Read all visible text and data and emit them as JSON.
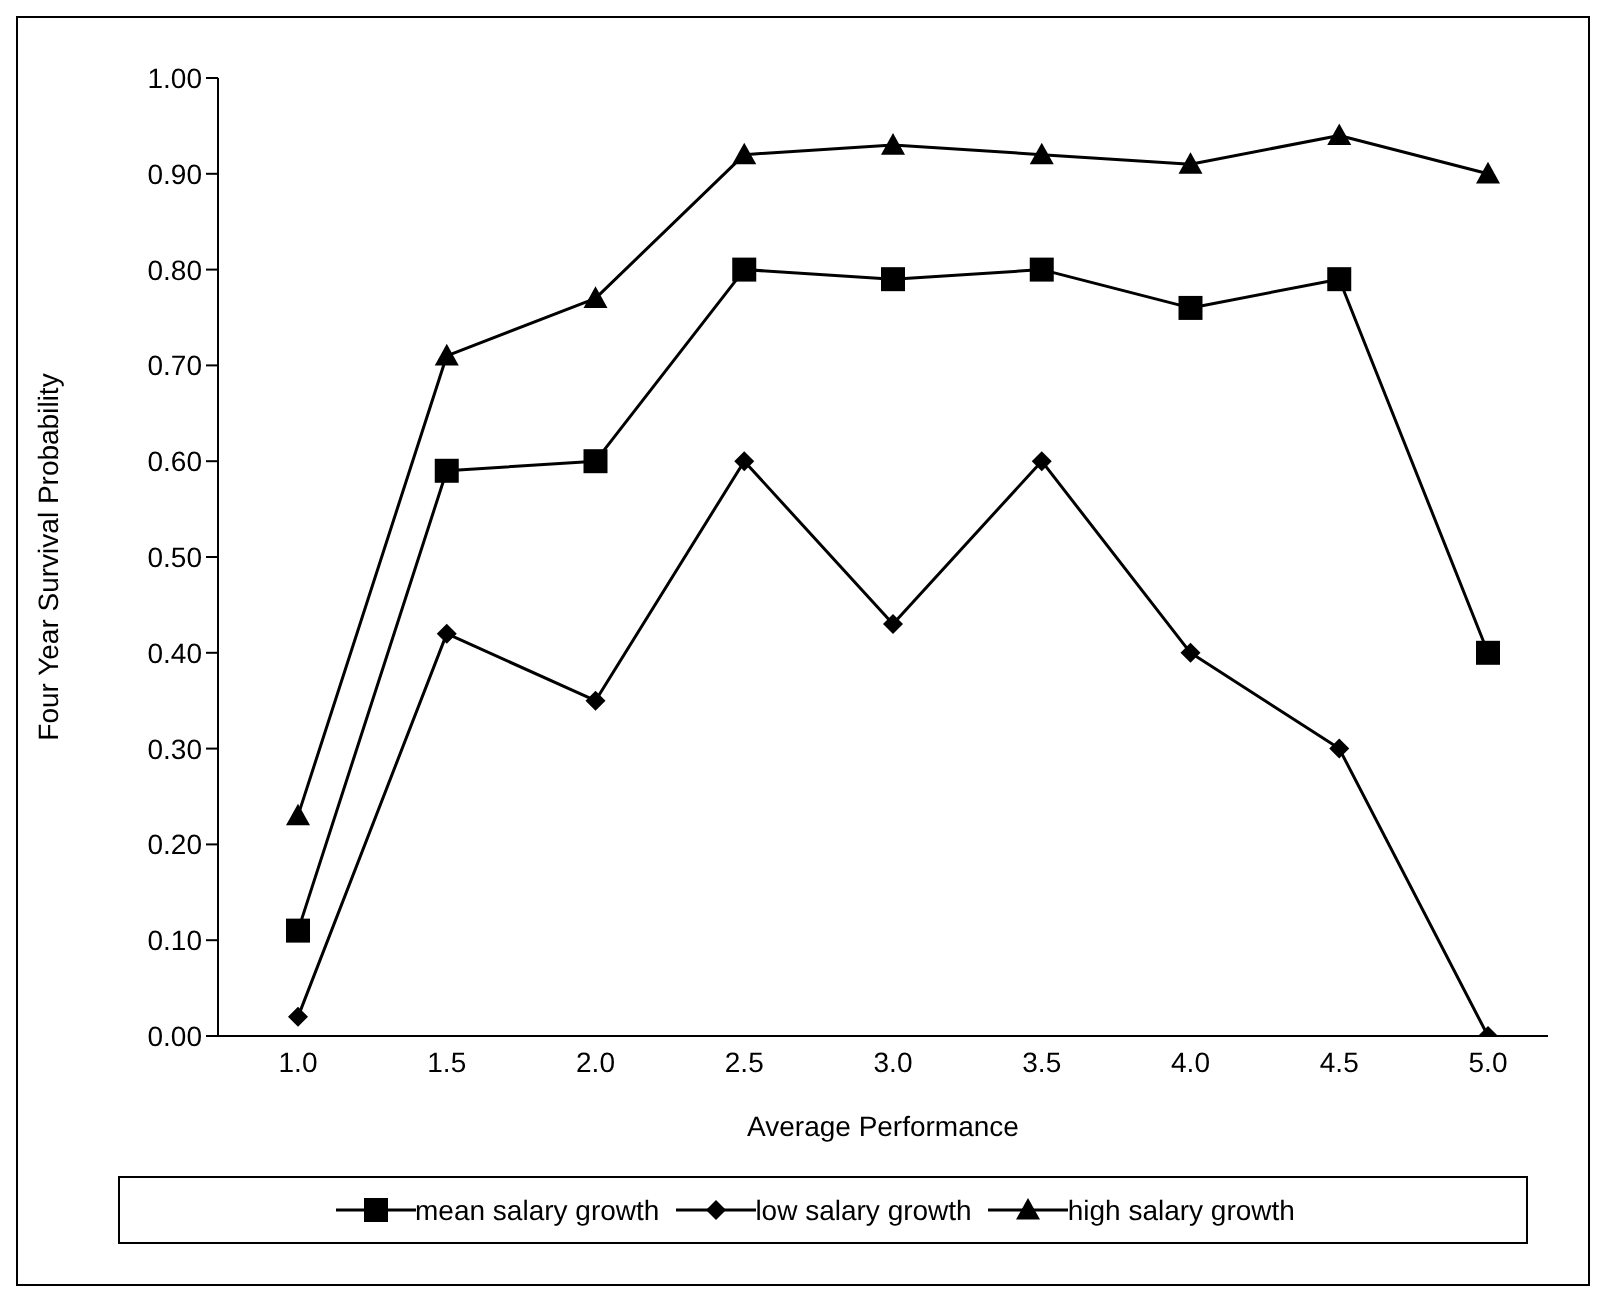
{
  "chart_data": {
    "type": "line",
    "xlabel": "Average Performance",
    "ylabel": "Four Year Survival Probability",
    "categories": [
      "1.0",
      "1.5",
      "2.0",
      "2.5",
      "3.0",
      "3.5",
      "4.0",
      "4.5",
      "5.0"
    ],
    "series": [
      {
        "name": "mean salary growth",
        "color": "#000000",
        "marker": "square",
        "values": [
          0.11,
          0.59,
          0.6,
          0.8,
          0.79,
          0.8,
          0.76,
          0.79,
          0.4
        ]
      },
      {
        "name": "low salary growth",
        "color": "#000000",
        "marker": "diamond",
        "values": [
          0.02,
          0.42,
          0.35,
          0.6,
          0.43,
          0.6,
          0.4,
          0.3,
          0.0
        ]
      },
      {
        "name": "high salary growth",
        "color": "#000000",
        "marker": "triangle",
        "values": [
          0.23,
          0.71,
          0.77,
          0.92,
          0.93,
          0.92,
          0.91,
          0.94,
          0.9
        ]
      }
    ],
    "ylim": [
      0,
      1
    ],
    "yticks": [
      {
        "value": 0,
        "label": "0.00"
      },
      {
        "value": 0.1,
        "label": "0.10"
      },
      {
        "value": 0.2,
        "label": "0.20"
      },
      {
        "value": 0.3,
        "label": "0.30"
      },
      {
        "value": 0.4,
        "label": "0.40"
      },
      {
        "value": 0.5,
        "label": "0.50"
      },
      {
        "value": 0.6,
        "label": "0.60"
      },
      {
        "value": 0.7,
        "label": "0.70"
      },
      {
        "value": 0.8,
        "label": "0.80"
      },
      {
        "value": 0.9,
        "label": "0.90"
      },
      {
        "value": 1,
        "label": "1.00"
      }
    ],
    "grid": false,
    "legend": "bottom",
    "line_style": "solid"
  }
}
